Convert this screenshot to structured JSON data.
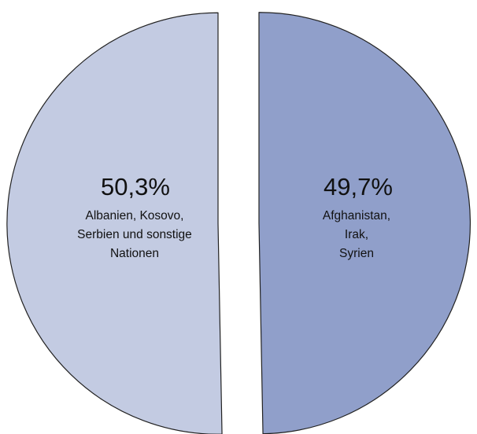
{
  "chart_data": {
    "type": "pie",
    "slices": [
      {
        "value": 49.7,
        "percent_label": "49,7%",
        "label_lines": [
          "Afghanistan,",
          "Irak,",
          "Syrien"
        ],
        "color": "#909fca"
      },
      {
        "value": 50.3,
        "percent_label": "50,3%",
        "label_lines": [
          "Albanien, Kosovo,",
          "Serbien und sonstige",
          "Nationen"
        ],
        "color": "#c3cbe2"
      }
    ],
    "stroke_color": "#222222",
    "exploded": true
  }
}
